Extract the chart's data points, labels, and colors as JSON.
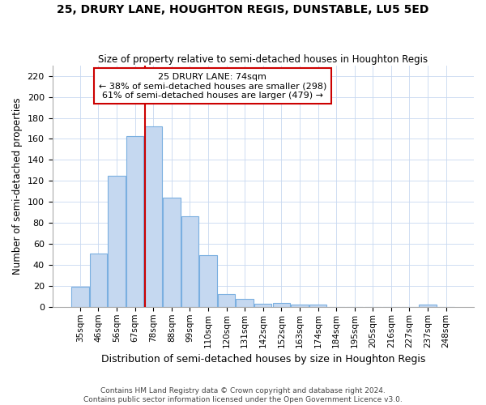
{
  "title": "25, DRURY LANE, HOUGHTON REGIS, DUNSTABLE, LU5 5ED",
  "subtitle": "Size of property relative to semi-detached houses in Houghton Regis",
  "xlabel": "Distribution of semi-detached houses by size in Houghton Regis",
  "ylabel": "Number of semi-detached properties",
  "categories": [
    "35sqm",
    "46sqm",
    "56sqm",
    "67sqm",
    "78sqm",
    "88sqm",
    "99sqm",
    "110sqm",
    "120sqm",
    "131sqm",
    "142sqm",
    "152sqm",
    "163sqm",
    "174sqm",
    "184sqm",
    "195sqm",
    "205sqm",
    "216sqm",
    "227sqm",
    "237sqm",
    "248sqm"
  ],
  "values": [
    19,
    51,
    125,
    163,
    172,
    104,
    86,
    49,
    12,
    8,
    3,
    4,
    2,
    2,
    0,
    0,
    0,
    0,
    0,
    2,
    0
  ],
  "bar_color": "#c5d8f0",
  "bar_edge_color": "#7aafe0",
  "property_label": "25 DRURY LANE: 74sqm",
  "pct_smaller": 38,
  "n_smaller": 298,
  "pct_larger": 61,
  "n_larger": 479,
  "vline_color": "#cc0000",
  "annotation_box_color": "#cc0000",
  "footer_line1": "Contains HM Land Registry data © Crown copyright and database right 2024.",
  "footer_line2": "Contains public sector information licensed under the Open Government Licence v3.0.",
  "background_color": "#ffffff",
  "grid_color": "#c8d8f0",
  "ylim": [
    0,
    230
  ],
  "yticks": [
    0,
    20,
    40,
    60,
    80,
    100,
    120,
    140,
    160,
    180,
    200,
    220
  ],
  "vline_x_index": 4
}
